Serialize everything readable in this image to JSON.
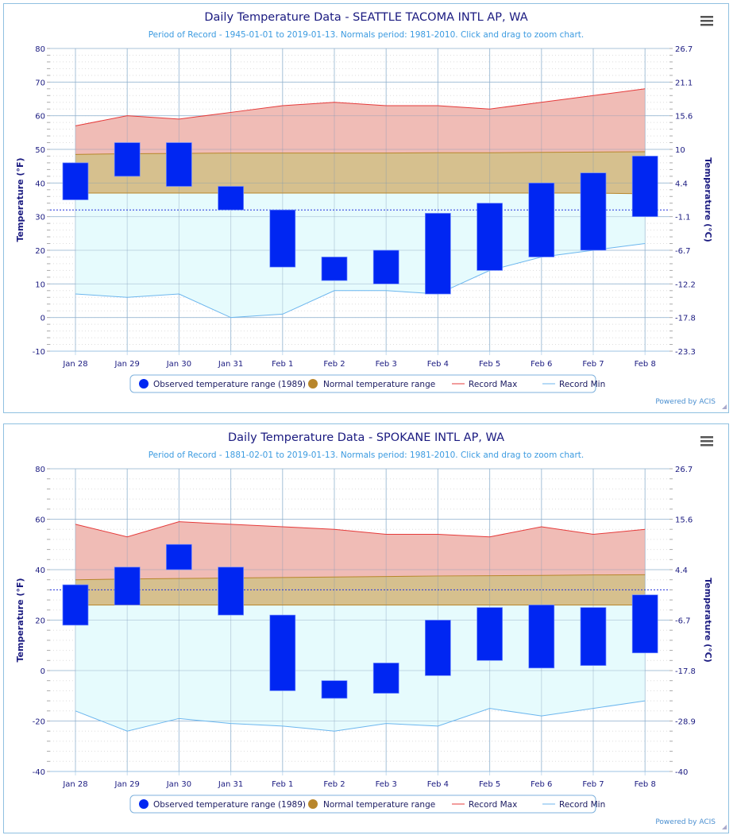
{
  "colors": {
    "observed": "#0026f2",
    "normal_fill": "#d6c08e",
    "normal_line": "#b8862b",
    "recmax_fill": "#f0bcb6",
    "recmax_line": "#e53b3b",
    "recmin_fill": "#e6fbfd",
    "recmin_line": "#6cb6ee",
    "freeze": "#2233dd",
    "grid": "#c5dcef",
    "text": "#1a1a80"
  },
  "menu_icon": "hamburger-menu-icon",
  "chart_data": [
    {
      "type": "bar",
      "title": "Daily Temperature Data - SEATTLE TACOMA INTL AP, WA",
      "subtitle": "Period of Record - 1945-01-01 to 2019-01-13. Normals period: 1981-2010. Click and drag to zoom chart.",
      "ylabel": "Temperature (°F)",
      "ylabel_right": "Temperature (°C)",
      "ylim": [
        -10,
        80
      ],
      "yticks": [
        80,
        70,
        60,
        50,
        40,
        30,
        20,
        10,
        0,
        -10
      ],
      "yticks_right": [
        "26.7",
        "21.1",
        "15.6",
        "10",
        "4.4",
        "-1.1",
        "-6.7",
        "-12.2",
        "-17.8",
        "-23.3"
      ],
      "freezing_line": 32,
      "categories": [
        "Jan 28",
        "Jan 29",
        "Jan 30",
        "Jan 31",
        "Feb 1",
        "Feb 2",
        "Feb 3",
        "Feb 4",
        "Feb 5",
        "Feb 6",
        "Feb 7",
        "Feb 8"
      ],
      "series": [
        {
          "name": "Observed temperature range (1989)",
          "type": "columnrange",
          "low": [
            35,
            42,
            39,
            32,
            15,
            11,
            10,
            7,
            14,
            18,
            20,
            30
          ],
          "high": [
            46,
            52,
            52,
            39,
            32,
            18,
            20,
            31,
            34,
            40,
            43,
            48
          ]
        },
        {
          "name": "Normal temperature range",
          "type": "arearange",
          "low": [
            37,
            37,
            37,
            37,
            37,
            37,
            37,
            37,
            37,
            37,
            37,
            36.8
          ],
          "high": [
            48.5,
            48.7,
            48.8,
            48.9,
            48.9,
            48.9,
            48.9,
            49,
            49,
            49.1,
            49.2,
            49.3
          ]
        },
        {
          "name": "Record Max",
          "type": "line",
          "values": [
            57,
            60,
            59,
            61,
            63,
            64,
            63,
            63,
            62,
            64,
            66,
            68
          ]
        },
        {
          "name": "Record Min",
          "type": "line",
          "values": [
            7,
            6,
            7,
            0,
            1,
            8,
            8,
            7,
            14,
            18,
            20,
            22
          ]
        }
      ],
      "legend": "bottom-center",
      "credit": "Powered by ACIS"
    },
    {
      "type": "bar",
      "title": "Daily Temperature Data - SPOKANE INTL AP, WA",
      "subtitle": "Period of Record - 1881-02-01 to 2019-01-13. Normals period: 1981-2010. Click and drag to zoom chart.",
      "ylabel": "Temperature (°F)",
      "ylabel_right": "Temperature (°C)",
      "ylim": [
        -40,
        80
      ],
      "yticks": [
        80,
        60,
        40,
        20,
        0,
        -20,
        -40
      ],
      "yticks_right": [
        "26.7",
        "15.6",
        "4.4",
        "-6.7",
        "-17.8",
        "-28.9",
        "-40"
      ],
      "freezing_line": 32,
      "categories": [
        "Jan 28",
        "Jan 29",
        "Jan 30",
        "Jan 31",
        "Feb 1",
        "Feb 2",
        "Feb 3",
        "Feb 4",
        "Feb 5",
        "Feb 6",
        "Feb 7",
        "Feb 8"
      ],
      "series": [
        {
          "name": "Observed temperature range (1989)",
          "type": "columnrange",
          "low": [
            18,
            26,
            40,
            22,
            -8,
            -11,
            -9,
            -2,
            4,
            1,
            2,
            7
          ],
          "high": [
            34,
            41,
            50,
            41,
            22,
            -4,
            3,
            20,
            25,
            26,
            25,
            30
          ]
        },
        {
          "name": "Normal temperature range",
          "type": "arearange",
          "low": [
            26,
            26,
            26,
            26,
            26,
            26,
            26,
            26,
            26,
            26,
            26,
            26
          ],
          "high": [
            36,
            36.3,
            36.5,
            36.7,
            36.9,
            37.1,
            37.3,
            37.5,
            37.6,
            37.7,
            37.9,
            38
          ]
        },
        {
          "name": "Record Max",
          "type": "line",
          "values": [
            58,
            53,
            59,
            58,
            57,
            56,
            54,
            54,
            53,
            57,
            54,
            56
          ]
        },
        {
          "name": "Record Min",
          "type": "line",
          "values": [
            -16,
            -24,
            -19,
            -21,
            -22,
            -24,
            -21,
            -22,
            -15,
            -18,
            -15,
            -12
          ]
        }
      ],
      "legend": "bottom-center",
      "credit": "Powered by ACIS"
    }
  ]
}
